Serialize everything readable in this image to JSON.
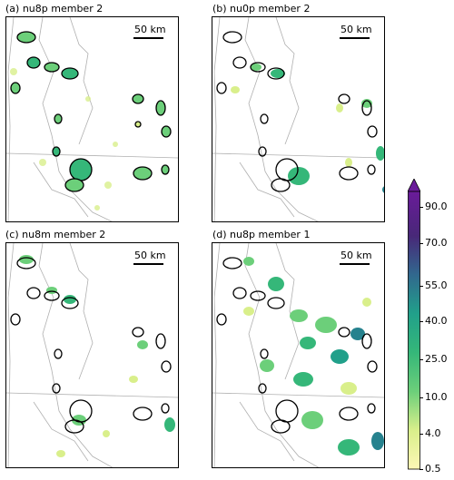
{
  "panels": [
    {
      "title": "(a) nu8p member 2",
      "scale": "50 km"
    },
    {
      "title": "(b) nu0p member 2",
      "scale": "50 km"
    },
    {
      "title": "(c) nu8m member 2",
      "scale": "50 km"
    },
    {
      "title": "(d) nu8p member 1",
      "scale": "50 km"
    }
  ],
  "colorbar": {
    "ticks": [
      "90.0",
      "70.0",
      "55.0",
      "40.0",
      "25.0",
      "10.0",
      "4.0",
      "0.5"
    ],
    "colors": [
      "#fdf7b5",
      "#d9ef8b",
      "#addd8e",
      "#6ccf7a",
      "#35b779",
      "#21a08a",
      "#26828e",
      "#31688e",
      "#3e4989",
      "#482878",
      "#54107a",
      "#6a1b9a"
    ]
  }
}
